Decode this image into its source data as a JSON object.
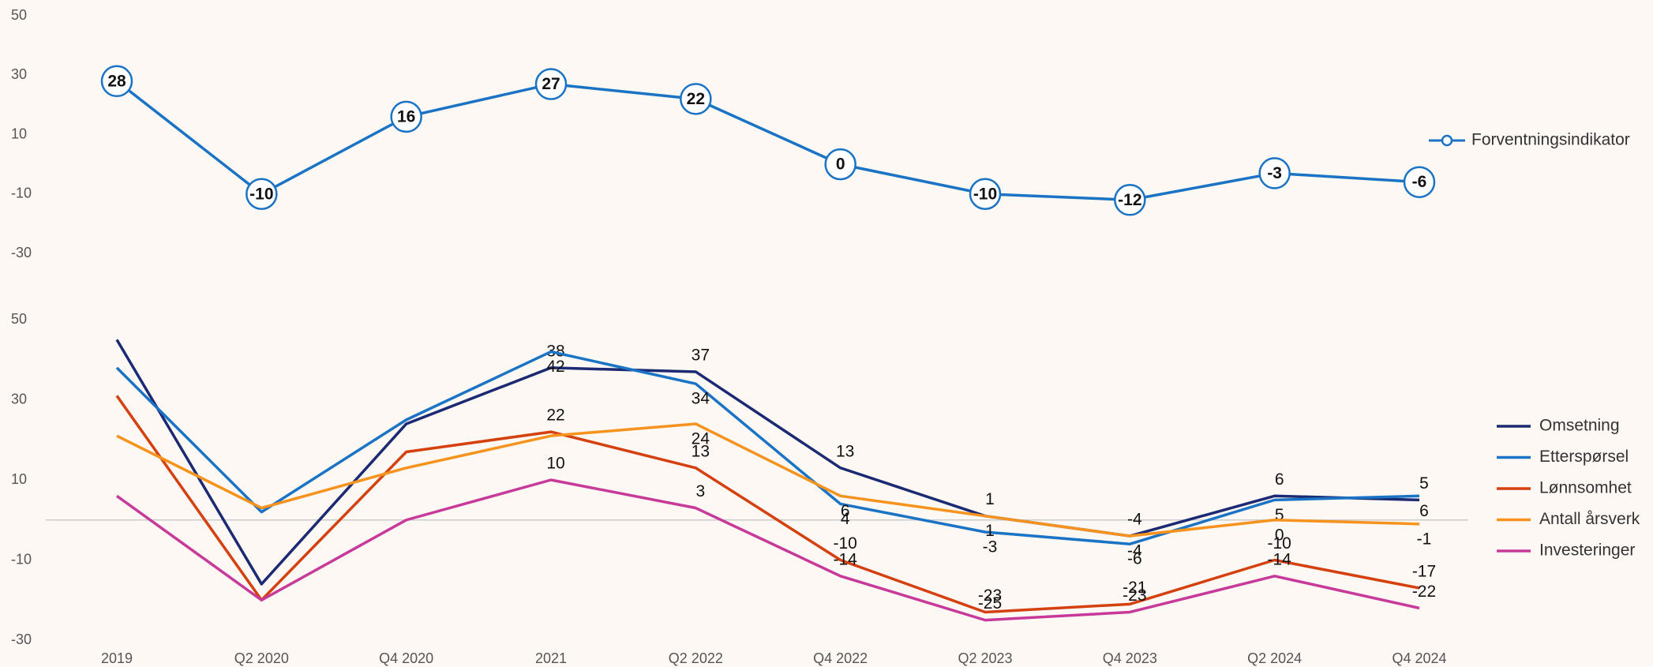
{
  "chart_data": [
    {
      "type": "line",
      "ylim": [
        -30,
        50
      ],
      "yticks": [
        50,
        30,
        10,
        -10,
        -30
      ],
      "legend": "right",
      "series": [
        {
          "name": "Forventningsindikator",
          "color": "#1a73c4",
          "values": [
            28,
            -10,
            16,
            27,
            22,
            0,
            -10,
            -12,
            -3,
            -6
          ]
        }
      ]
    },
    {
      "type": "line",
      "categories": [
        "2019",
        "Q2 2020",
        "Q4 2020",
        "2021",
        "Q2 2022",
        "Q4 2022",
        "Q2 2023",
        "Q4 2023",
        "Q2 2024",
        "Q4 2024"
      ],
      "ylim": [
        -30,
        50
      ],
      "yticks": [
        50,
        30,
        10,
        -10,
        -30
      ],
      "legend": "right",
      "series": [
        {
          "name": "Omsetning",
          "color": "#1b2a72",
          "values": [
            45,
            -16,
            24,
            38,
            37,
            13,
            1,
            -4,
            6,
            5
          ],
          "value_labels": [
            null,
            null,
            null,
            "38",
            "37",
            "13",
            "1",
            "-4",
            "6",
            "5"
          ]
        },
        {
          "name": "Etterspørsel",
          "color": "#1a73c4",
          "values": [
            38,
            2,
            25,
            42,
            34,
            4,
            -3,
            -6,
            5,
            6
          ],
          "value_labels": [
            null,
            null,
            null,
            "42",
            "34",
            "4",
            "-3",
            "-6",
            "5",
            "6"
          ]
        },
        {
          "name": "Lønnsomhet",
          "color": "#d4410f",
          "values": [
            31,
            -20,
            17,
            22,
            13,
            -10,
            -23,
            -21,
            -10,
            -17
          ],
          "value_labels": [
            null,
            null,
            null,
            "22",
            "13",
            "-10",
            "-23",
            "-21",
            "-10",
            "-17"
          ]
        },
        {
          "name": "Antall årsverk",
          "color": "#f5931e",
          "values": [
            21,
            3,
            13,
            21,
            24,
            6,
            1,
            -4,
            0,
            -1
          ],
          "value_labels": [
            null,
            null,
            null,
            null,
            "24",
            "6",
            "1",
            "-4",
            "0",
            "-1"
          ]
        },
        {
          "name": "Investeringer",
          "color": "#c73a9a",
          "values": [
            6,
            -20,
            0,
            10,
            3,
            -14,
            -25,
            -23,
            -14,
            -22
          ],
          "value_labels": [
            null,
            null,
            null,
            "10",
            "3",
            "-14",
            "-25",
            "-23",
            "-14",
            "-22"
          ]
        }
      ]
    }
  ]
}
